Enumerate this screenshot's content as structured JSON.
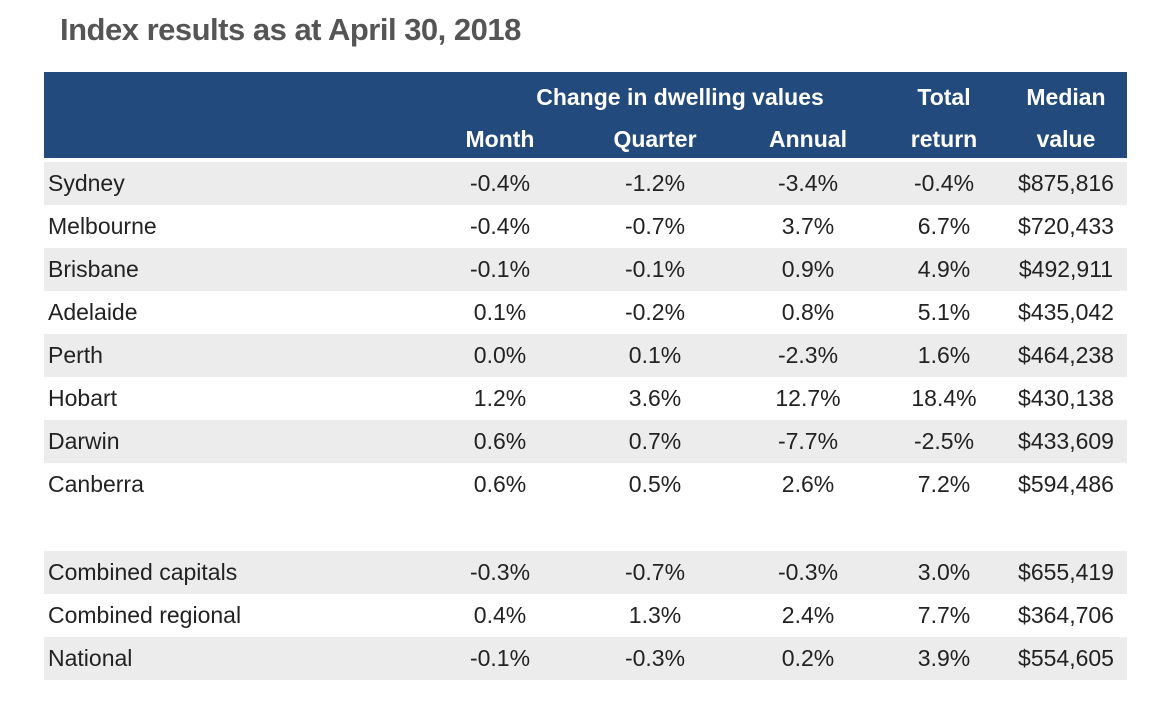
{
  "title": "Index results as at April 30, 2018",
  "table": {
    "group_header": "Change in dwelling values",
    "columns": [
      "Month",
      "Quarter",
      "Annual",
      "Total return",
      "Median value"
    ],
    "rows": [
      [
        "Sydney",
        "-0.4%",
        "-1.2%",
        "-3.4%",
        "-0.4%",
        "$875,816"
      ],
      [
        "Melbourne",
        "-0.4%",
        "-0.7%",
        "3.7%",
        "6.7%",
        "$720,433"
      ],
      [
        "Brisbane",
        "-0.1%",
        "-0.1%",
        "0.9%",
        "4.9%",
        "$492,911"
      ],
      [
        "Adelaide",
        "0.1%",
        "-0.2%",
        "0.8%",
        "5.1%",
        "$435,042"
      ],
      [
        "Perth",
        "0.0%",
        "0.1%",
        "-2.3%",
        "1.6%",
        "$464,238"
      ],
      [
        "Hobart",
        "1.2%",
        "3.6%",
        "12.7%",
        "18.4%",
        "$430,138"
      ],
      [
        "Darwin",
        "0.6%",
        "0.7%",
        "-7.7%",
        "-2.5%",
        "$433,609"
      ],
      [
        "Canberra",
        "0.6%",
        "0.5%",
        "2.6%",
        "7.2%",
        "$594,486"
      ]
    ],
    "summary_rows": [
      [
        "Combined capitals",
        "-0.3%",
        "-0.7%",
        "-0.3%",
        "3.0%",
        "$655,419"
      ],
      [
        "Combined regional",
        "0.4%",
        "1.3%",
        "2.4%",
        "7.7%",
        "$364,706"
      ],
      [
        "National",
        "-0.1%",
        "-0.3%",
        "0.2%",
        "3.9%",
        "$554,605"
      ]
    ]
  }
}
